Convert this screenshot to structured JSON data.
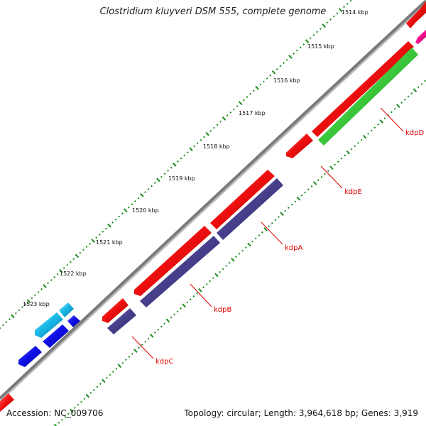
{
  "title": "Clostridium kluyveri DSM 555, complete genome",
  "accession_text": "Accession: NC_009706",
  "summary_text": "Topology: circular; Length: 3,964,618 bp; Genes: 3,919",
  "colors": {
    "backbone": "#7a7a7a",
    "tick_dot": "#1a8a1a",
    "label": "#e00000",
    "red": "#f01010",
    "green": "#3dcc3d",
    "purple": "#48418e",
    "blue": "#1010e8",
    "cyan": "#18b8e8",
    "magenta": "#ff1493"
  },
  "scale_ticks": [
    {
      "label": "1514 kbp"
    },
    {
      "label": "1515 kbp"
    },
    {
      "label": "1516 kbp"
    },
    {
      "label": "1517 kbp"
    },
    {
      "label": "1518 kbp"
    },
    {
      "label": "1519 kbp"
    },
    {
      "label": "1520 kbp"
    },
    {
      "label": "1521 kbp"
    },
    {
      "label": "1522 kbp"
    },
    {
      "label": "1523 kbp"
    }
  ],
  "gene_labels": [
    {
      "name": "kdpD"
    },
    {
      "name": "kdpE"
    },
    {
      "name": "kdpA"
    },
    {
      "name": "kdpB"
    },
    {
      "name": "kdpC"
    }
  ]
}
